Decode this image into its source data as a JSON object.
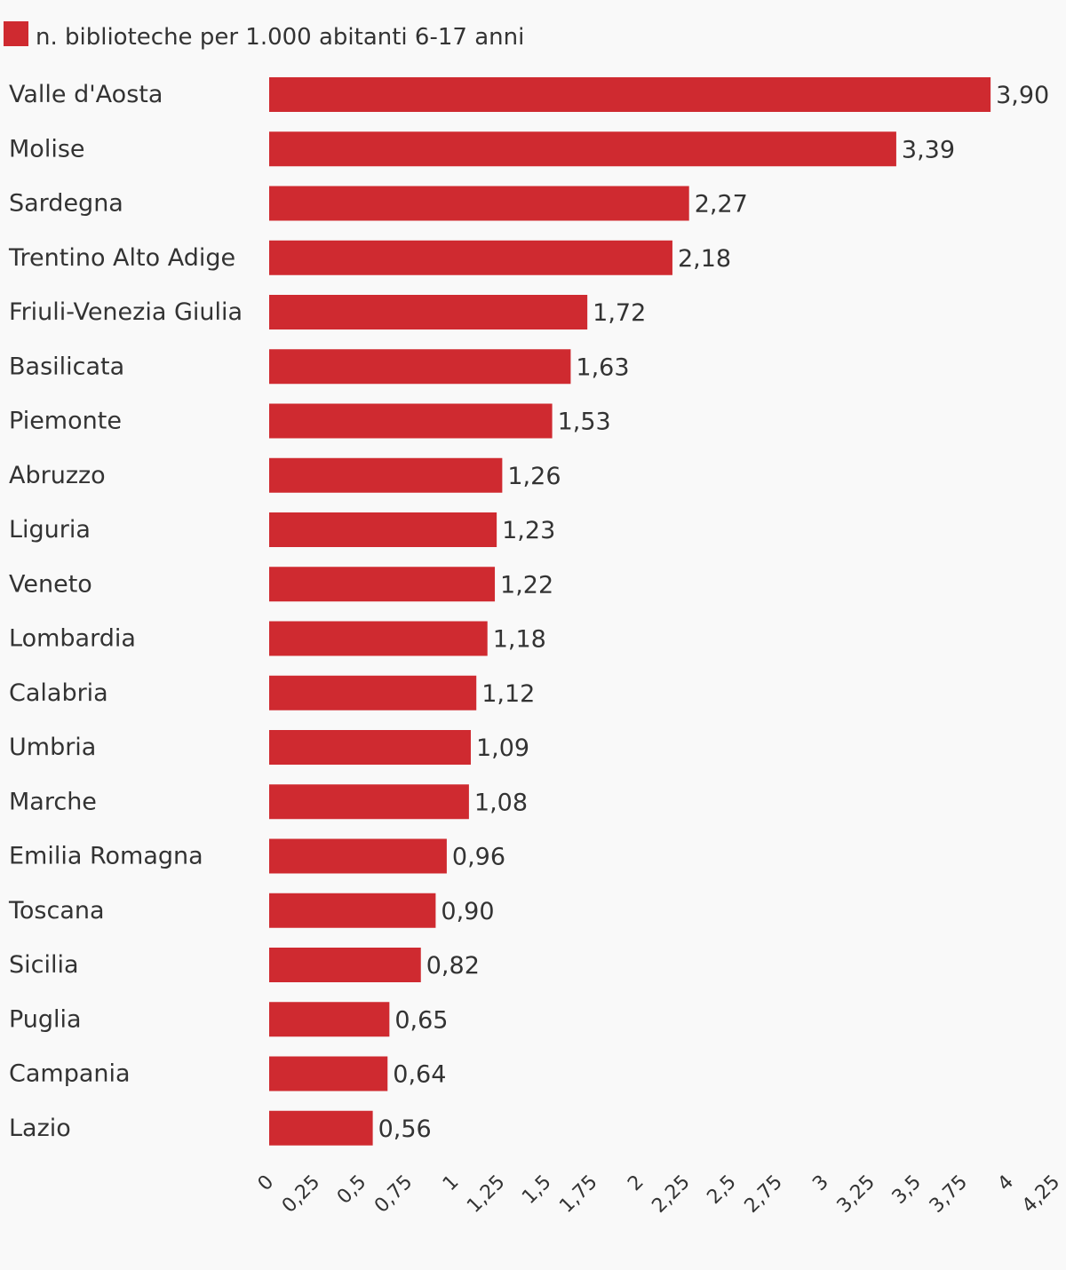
{
  "chart_data": {
    "type": "bar",
    "orientation": "horizontal",
    "categories": [
      "Valle d'Aosta",
      "Molise",
      "Sardegna",
      "Trentino Alto Adige",
      "Friuli-Venezia Giulia",
      "Basilicata",
      "Piemonte",
      "Abruzzo",
      "Liguria",
      "Veneto",
      "Lombardia",
      "Calabria",
      "Umbria",
      "Marche",
      "Emilia Romagna",
      "Toscana",
      "Sicilia",
      "Puglia",
      "Campania",
      "Lazio"
    ],
    "series": [
      {
        "name": "n. biblioteche per 1.000 abitanti 6-17 anni",
        "color": "#cf2a30",
        "values": [
          3.9,
          3.39,
          2.27,
          2.18,
          1.72,
          1.63,
          1.53,
          1.26,
          1.23,
          1.22,
          1.18,
          1.12,
          1.09,
          1.08,
          0.96,
          0.9,
          0.82,
          0.65,
          0.64,
          0.56
        ],
        "data_labels": [
          "3,90",
          "3,39",
          "2,27",
          "2,18",
          "1,72",
          "1,63",
          "1,53",
          "1,26",
          "1,23",
          "1,22",
          "1,18",
          "1,12",
          "1,09",
          "1,08",
          "0,96",
          "0,90",
          "0,82",
          "0,65",
          "0,64",
          "0,56"
        ]
      }
    ],
    "x_ticks": [
      0,
      0.25,
      0.5,
      0.75,
      1,
      1.25,
      1.5,
      1.75,
      2,
      2.25,
      2.5,
      2.75,
      3,
      3.25,
      3.5,
      3.75,
      4,
      4.25
    ],
    "x_tick_labels": [
      "0",
      "0,25",
      "0,5",
      "0,75",
      "1",
      "1,25",
      "1,5",
      "1,75",
      "2",
      "2,25",
      "2,5",
      "2,75",
      "3",
      "3,25",
      "3,5",
      "3,75",
      "4",
      "4,25"
    ],
    "xlim": [
      0,
      4.25
    ],
    "grid": false,
    "legend_position": "top-left",
    "title": "",
    "xlabel": "",
    "ylabel": ""
  }
}
